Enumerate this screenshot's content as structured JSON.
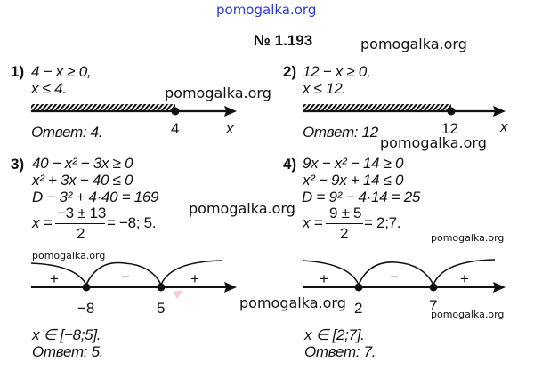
{
  "watermarks": {
    "top": "pomogalka.org",
    "w1": "pomogalka.org",
    "w2": "pomogalka.org",
    "w3": "pomogalka.org",
    "w4": "pomogalka.org",
    "w5": "pomogalka.org",
    "w6": "pomogalka.org",
    "w7": "pomogalka.org",
    "w8": "pomogalka.org",
    "w9": "pomogalka.org"
  },
  "colors": {
    "top_watermark": "#2a3bd6",
    "text": "#111111"
  },
  "title": "№ 1.193",
  "p1": {
    "num": "1)",
    "lines": [
      "4 − x ≥ 0,",
      "x ≤ 4."
    ],
    "point_label": "4",
    "axis_label": "x",
    "answer": "Ответ: 4."
  },
  "p2": {
    "num": "2)",
    "lines": [
      "12 − x ≥ 0,",
      "x ≤ 12."
    ],
    "point_label": "12",
    "axis_label": "x",
    "answer": "Ответ: 12"
  },
  "p3": {
    "num": "3)",
    "lines": [
      "40 − x² − 3x ≥ 0",
      "x² + 3x − 40 ≤ 0",
      "D − 3² + 4·40 = 169"
    ],
    "x_prefix": "x =",
    "frac_num": "−3 ± 13",
    "frac_den": "2",
    "x_result": "= −8; 5.",
    "signs": [
      "+",
      "−",
      "+"
    ],
    "points": [
      "−8",
      "5"
    ],
    "interval": "x ∈ [−8;5].",
    "answer": "Ответ: 5."
  },
  "p4": {
    "num": "4)",
    "lines": [
      "9x − x² − 14 ≥ 0",
      "x² − 9x + 14 ≤ 0",
      "D = 9² − 4·14 = 25"
    ],
    "x_prefix": "x =",
    "frac_num": "9 ± 5",
    "frac_den": "2",
    "x_result": "= 2;7.",
    "signs": [
      "+",
      "−",
      "+"
    ],
    "points": [
      "2",
      "7"
    ],
    "interval": "x ∈ [2;7].",
    "answer": "Ответ: 7."
  }
}
